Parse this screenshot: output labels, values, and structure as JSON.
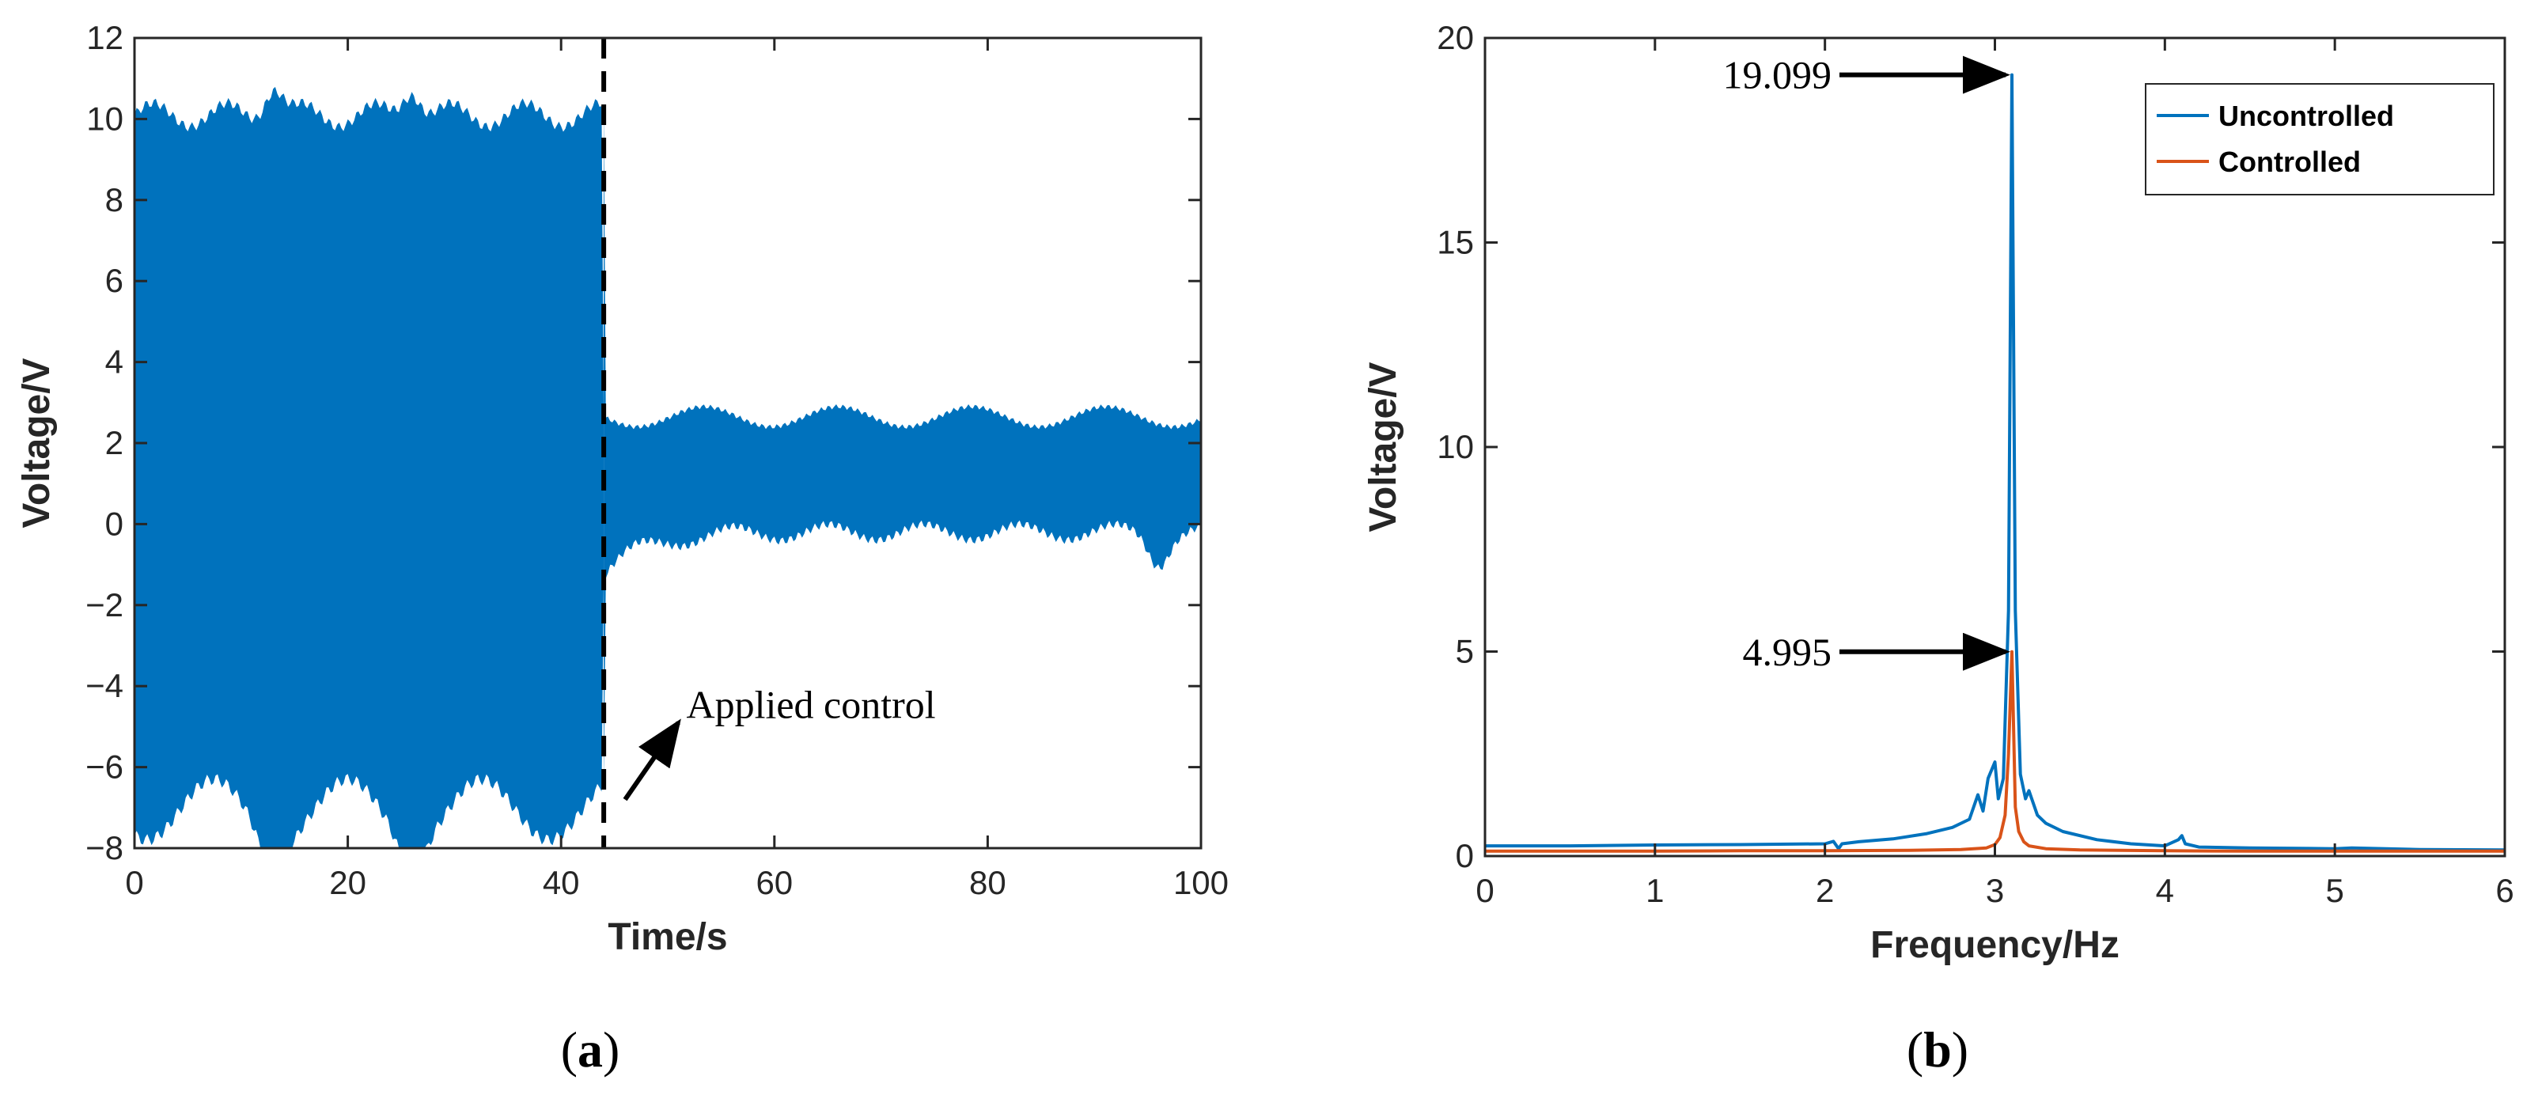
{
  "chart_data": [
    {
      "panel": "(a)",
      "panel_letter": "a",
      "type": "line",
      "xlabel": "Time/s",
      "ylabel": "Voltage/V",
      "xlim": [
        0,
        100
      ],
      "ylim": [
        -8,
        12
      ],
      "xticks": [
        0,
        20,
        40,
        60,
        80,
        100
      ],
      "yticks": [
        -8,
        -6,
        -4,
        -2,
        0,
        2,
        4,
        6,
        8,
        10,
        12
      ],
      "series_color": "#0072BD",
      "control_time": 44,
      "annotation": {
        "text": "Applied control",
        "arrow_from": [
          46,
          -6.8
        ],
        "arrow_to": [
          51,
          -4.9
        ]
      },
      "envelope": {
        "before_control": {
          "t": [
            0,
            44
          ],
          "upper": [
            9.8,
            10.4
          ],
          "lower": [
            -6.3,
            -7.8
          ]
        },
        "after_control": {
          "t": [
            44,
            100
          ],
          "upper": [
            2.4,
            2.9
          ],
          "lower": [
            -1.2,
            -0.2
          ]
        }
      },
      "upper_peaks": [
        {
          "t": 13,
          "v": 11.0
        },
        {
          "t": 26,
          "v": 10.95
        }
      ],
      "lower_troughs": [
        {
          "t": 13,
          "v": -7.8
        },
        {
          "t": 26,
          "v": -7.7
        },
        {
          "t": 96,
          "v": -1.1
        }
      ]
    },
    {
      "panel": "(b)",
      "panel_letter": "b",
      "type": "line",
      "xlabel": "Frequency/Hz",
      "ylabel": "Voltage/V",
      "xlim": [
        0,
        6
      ],
      "ylim": [
        0,
        20
      ],
      "xticks": [
        0,
        1,
        2,
        3,
        4,
        5,
        6
      ],
      "yticks": [
        0,
        5,
        10,
        15,
        20
      ],
      "legend": {
        "position": "top-right",
        "entries": [
          "Uncontrolled",
          "Controlled"
        ]
      },
      "series": [
        {
          "name": "Uncontrolled",
          "color": "#0072BD",
          "x": [
            0,
            0.5,
            1.0,
            1.5,
            2.0,
            2.05,
            2.08,
            2.1,
            2.2,
            2.4,
            2.6,
            2.75,
            2.85,
            2.9,
            2.93,
            2.96,
            3.0,
            3.02,
            3.05,
            3.08,
            3.1,
            3.12,
            3.15,
            3.18,
            3.2,
            3.25,
            3.3,
            3.4,
            3.6,
            3.8,
            4.0,
            4.08,
            4.1,
            4.12,
            4.2,
            4.5,
            5.0,
            5.1,
            5.5,
            6.0
          ],
          "y": [
            0.25,
            0.25,
            0.27,
            0.28,
            0.3,
            0.36,
            0.18,
            0.3,
            0.35,
            0.42,
            0.55,
            0.7,
            0.9,
            1.5,
            1.1,
            1.9,
            2.3,
            1.4,
            1.9,
            6.0,
            19.099,
            6.0,
            2.0,
            1.4,
            1.6,
            1.0,
            0.8,
            0.6,
            0.4,
            0.3,
            0.25,
            0.4,
            0.5,
            0.3,
            0.22,
            0.2,
            0.18,
            0.2,
            0.16,
            0.15
          ]
        },
        {
          "name": "Controlled",
          "color": "#D95319",
          "x": [
            0,
            0.5,
            1.0,
            1.5,
            2.0,
            2.5,
            2.8,
            2.95,
            3.0,
            3.03,
            3.06,
            3.08,
            3.1,
            3.12,
            3.14,
            3.17,
            3.2,
            3.3,
            3.5,
            4.0,
            4.5,
            5.0,
            5.5,
            6.0
          ],
          "y": [
            0.12,
            0.12,
            0.12,
            0.13,
            0.13,
            0.14,
            0.16,
            0.2,
            0.28,
            0.45,
            1.0,
            2.5,
            4.995,
            1.2,
            0.6,
            0.35,
            0.25,
            0.18,
            0.15,
            0.13,
            0.12,
            0.12,
            0.12,
            0.12
          ]
        }
      ],
      "annotations": [
        {
          "text": "19.099",
          "x": 3.1,
          "y": 19.099
        },
        {
          "text": "4.995",
          "x": 3.1,
          "y": 4.995
        }
      ]
    }
  ]
}
